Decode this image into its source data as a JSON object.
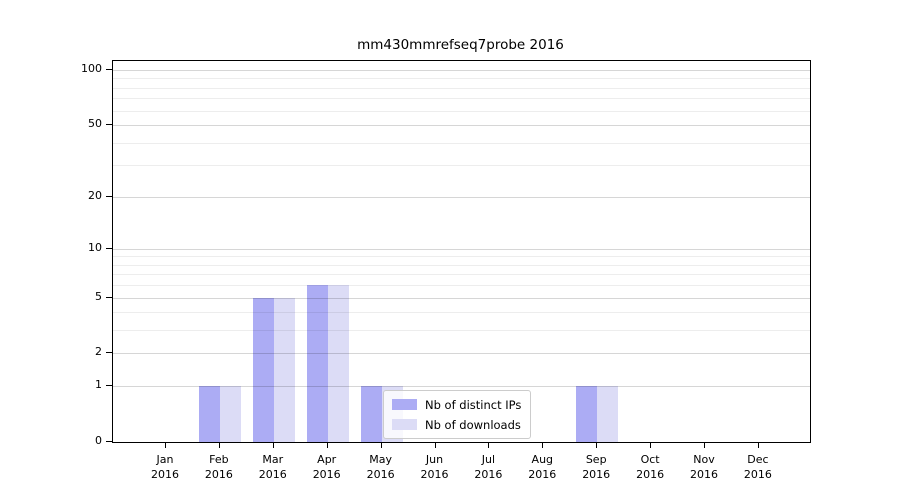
{
  "chart_data": {
    "type": "bar",
    "title": "mm430mmrefseq7probe 2016",
    "categories": [
      "Jan",
      "Feb",
      "Mar",
      "Apr",
      "May",
      "Jun",
      "Jul",
      "Aug",
      "Sep",
      "Oct",
      "Nov",
      "Dec"
    ],
    "xtick_year": "2016",
    "series": [
      {
        "name": "Nb of distinct IPs",
        "color": "#acacf4",
        "values": [
          0,
          1,
          5,
          6,
          1,
          0,
          0,
          0,
          1,
          0,
          0,
          0
        ]
      },
      {
        "name": "Nb of downloads",
        "color": "#dcdcf6",
        "values": [
          0,
          1,
          5,
          6,
          1,
          0,
          0,
          0,
          1,
          0,
          0,
          0
        ]
      }
    ],
    "yscale": "log1p",
    "ylim": [
      0,
      110
    ],
    "yticks_major": [
      0,
      1,
      2,
      5,
      10,
      20,
      50,
      100
    ],
    "yticks_minor": [
      3,
      4,
      6,
      7,
      8,
      9,
      30,
      40,
      60,
      70,
      80,
      90
    ],
    "grid": "horizontal",
    "legend_position": "lower-center"
  }
}
